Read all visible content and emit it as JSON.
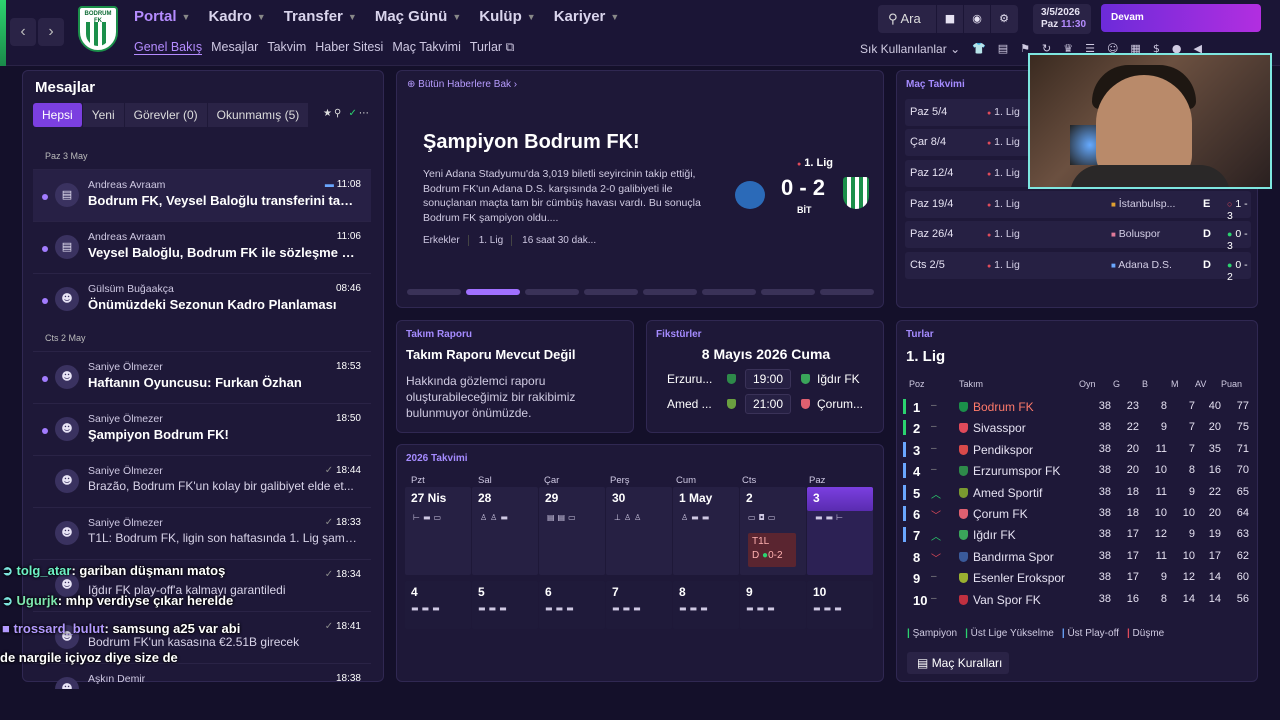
{
  "colors": {
    "accent": "#b58cff",
    "primary": "#7b3fe0",
    "win": "#2bd36f",
    "loss": "#e04a5a"
  },
  "header": {
    "main_nav": [
      {
        "label": "Portal"
      },
      {
        "label": "Kadro"
      },
      {
        "label": "Transfer"
      },
      {
        "label": "Maç Günü"
      },
      {
        "label": "Kulüp"
      },
      {
        "label": "Kariyer"
      }
    ],
    "sub_nav": [
      {
        "label": "Genel Bakış"
      },
      {
        "label": "Mesajlar"
      },
      {
        "label": "Takvim"
      },
      {
        "label": "Haber Sitesi"
      },
      {
        "label": "Maç Takvimi"
      },
      {
        "label": "Turlar ⧉"
      }
    ],
    "favorites_label": "Sık Kullanılanlar",
    "search_label": "Ara",
    "date": "3/5/2026",
    "day": "Paz",
    "time": "11:30",
    "continue_label": "Devam",
    "crest_text": "BODRUM FK"
  },
  "messages": {
    "title": "Mesajlar",
    "tabs": [
      {
        "label": "Hepsi"
      },
      {
        "label": "Yeni"
      },
      {
        "label": "Görevler (0)"
      },
      {
        "label": "Okunmamış (5)"
      }
    ],
    "day1": "Paz 3 May",
    "day2": "Cts 2 May",
    "items": [
      {
        "sender": "Andreas Avraam",
        "subject": "Bodrum FK, Veysel Baloğlu transferini tam...",
        "time": "11:08"
      },
      {
        "sender": "Andreas Avraam",
        "subject": "Veysel Baloğlu, Bodrum FK ile sözleşme im...",
        "time": "11:06"
      },
      {
        "sender": "Gülsüm Buğaakça",
        "subject": "Önümüzdeki Sezonun Kadro Planlaması",
        "time": "08:46"
      },
      {
        "sender": "Saniye Ölmezer",
        "subject": "Haftanın Oyuncusu: Furkan Özhan",
        "time": "18:53"
      },
      {
        "sender": "Saniye Ölmezer",
        "subject": "Şampiyon Bodrum FK!",
        "time": "18:50"
      },
      {
        "sender": "Saniye Ölmezer",
        "subject": "Brazão, Bodrum FK'un kolay bir galibiyet elde et...",
        "time": "18:44"
      },
      {
        "sender": "Saniye Ölmezer",
        "subject": "T1L: Bodrum FK, ligin son haftasında 1. Lig şampi...",
        "time": "18:33"
      },
      {
        "sender": "",
        "subject": "Iğdır FK play-off'a kalmayı garantiledi",
        "time": "18:34"
      },
      {
        "sender": "",
        "subject": "Bodrum FK'un kasasına €2.51B girecek",
        "time": "18:41"
      },
      {
        "sender": "Aşkın Demir",
        "subject": "",
        "time": "18:38"
      }
    ]
  },
  "chat": [
    {
      "user": "tolg_atar",
      "text": ": gariban düşmanı matoş"
    },
    {
      "user": "Ugurjk",
      "text": ": mhp verdiyse çıkar herelde"
    },
    {
      "user": "trossard_bulut",
      "text": ": samsung a25 var abi"
    },
    {
      "user": "",
      "text": "de nargile içiyoz diye size de"
    }
  ],
  "news": {
    "header": "Bütün Haberlere Bak",
    "title": "Şampiyon Bodrum FK!",
    "text": "Yeni Adana Stadyumu'da 3,019 biletli seyircinin takip ettiği, Bodrum FK'un Adana D.S. karşısında 2-0 galibiyeti ile sonuçlanan maçta tam bir cümbüş havası vardı. Bu sonuçla Bodrum FK şampiyon oldu....",
    "tags": [
      "Erkekler",
      "1. Lig",
      "16 saat 30 dak..."
    ],
    "league": "1. Lig",
    "score": "0 - 2",
    "status": "BİT"
  },
  "schedule": {
    "title": "Maç Takvimi",
    "rows": [
      {
        "date": "Paz 5/4",
        "league": "1. Lig",
        "opponent": "",
        "venue": "",
        "score": ""
      },
      {
        "date": "Çar 8/4",
        "league": "1. Lig",
        "opponent": "",
        "venue": "",
        "score": ""
      },
      {
        "date": "Paz 12/4",
        "league": "1. Lig",
        "opponent": "",
        "venue": "",
        "score": ""
      },
      {
        "date": "Paz 19/4",
        "league": "1. Lig",
        "opponent": "İstanbulsp...",
        "venue": "E",
        "score": "1 - 3"
      },
      {
        "date": "Paz 26/4",
        "league": "1. Lig",
        "opponent": "Boluspor",
        "venue": "D",
        "score": "0 - 3"
      },
      {
        "date": "Cts 2/5",
        "league": "1. Lig",
        "opponent": "Adana D.S.",
        "venue": "D",
        "score": "0 - 2"
      }
    ]
  },
  "team_report": {
    "title": "Takım Raporu",
    "heading": "Takım Raporu Mevcut Değil",
    "text": "Hakkında gözlemci raporu oluşturabileceğimiz bir rakibimiz bulunmuyor önümüzde."
  },
  "fixtures": {
    "title": "Fikstürler",
    "date": "8 Mayıs 2026 Cuma",
    "rows": [
      {
        "home": "Erzuru...",
        "time": "19:00",
        "away": "Iğdır FK"
      },
      {
        "home": "Amed ...",
        "time": "21:00",
        "away": "Çorum..."
      }
    ]
  },
  "calendar": {
    "title": "2026 Takvimi",
    "weekdays": [
      "Pzt",
      "Sal",
      "Çar",
      "Perş",
      "Cum",
      "Cts",
      "Paz"
    ],
    "week1": [
      "27 Nis",
      "28",
      "29",
      "30",
      "1 May",
      "2",
      "3"
    ],
    "week2": [
      "4",
      "5",
      "6",
      "7",
      "8",
      "9",
      "10"
    ],
    "result_comp": "T1L",
    "result_venue": "D",
    "result_score": "0-2"
  },
  "league": {
    "title": "Turlar",
    "name": "1. Lig",
    "columns": [
      "Poz",
      "Takım",
      "Oyn",
      "G",
      "B",
      "M",
      "AV",
      "Puan"
    ],
    "rows": [
      {
        "pos": "1",
        "mv": "–",
        "team": "Bodrum FK",
        "p": "38",
        "w": "23",
        "d": "8",
        "l": "7",
        "gd": "40",
        "pts": "77"
      },
      {
        "pos": "2",
        "mv": "–",
        "team": "Sivasspor",
        "p": "38",
        "w": "22",
        "d": "9",
        "l": "7",
        "gd": "20",
        "pts": "75"
      },
      {
        "pos": "3",
        "mv": "–",
        "team": "Pendikspor",
        "p": "38",
        "w": "20",
        "d": "11",
        "l": "7",
        "gd": "35",
        "pts": "71"
      },
      {
        "pos": "4",
        "mv": "–",
        "team": "Erzurumspor FK",
        "p": "38",
        "w": "20",
        "d": "10",
        "l": "8",
        "gd": "16",
        "pts": "70"
      },
      {
        "pos": "5",
        "mv": "^",
        "team": "Amed Sportif",
        "p": "38",
        "w": "18",
        "d": "11",
        "l": "9",
        "gd": "22",
        "pts": "65"
      },
      {
        "pos": "6",
        "mv": "v",
        "team": "Çorum FK",
        "p": "38",
        "w": "18",
        "d": "10",
        "l": "10",
        "gd": "20",
        "pts": "64"
      },
      {
        "pos": "7",
        "mv": "^",
        "team": "Iğdır FK",
        "p": "38",
        "w": "17",
        "d": "12",
        "l": "9",
        "gd": "19",
        "pts": "63"
      },
      {
        "pos": "8",
        "mv": "v",
        "team": "Bandırma Spor",
        "p": "38",
        "w": "17",
        "d": "11",
        "l": "10",
        "gd": "17",
        "pts": "62"
      },
      {
        "pos": "9",
        "mv": "–",
        "team": "Esenler Erokspor",
        "p": "38",
        "w": "17",
        "d": "9",
        "l": "12",
        "gd": "14",
        "pts": "60"
      },
      {
        "pos": "10",
        "mv": "–",
        "team": "Van Spor FK",
        "p": "38",
        "w": "16",
        "d": "8",
        "l": "14",
        "gd": "14",
        "pts": "56"
      }
    ],
    "legend": [
      "Şampiyon",
      "Üst Lige Yükselme",
      "Üst Play-off",
      "Düşme"
    ],
    "rules_label": "Maç Kuralları"
  }
}
